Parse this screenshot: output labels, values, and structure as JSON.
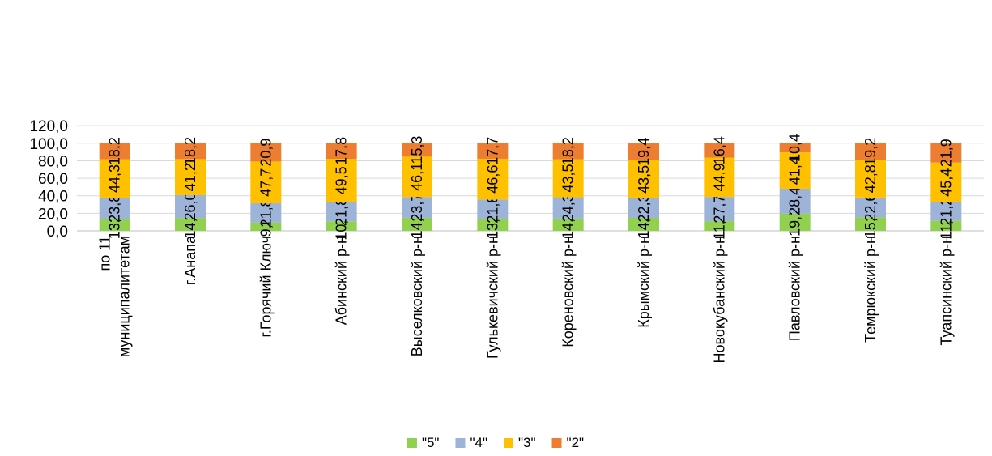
{
  "chart_data": {
    "type": "bar",
    "stacked": true,
    "categories": [
      "по 11 муниципалитетам",
      "г.Анапа",
      "г.Горячий Ключ",
      "Абинский р-н",
      "Выселковский р-н",
      "Гулькевичский р-н",
      "Кореновский р-н",
      "Крымский р-н",
      "Новокубанский р-н",
      "Павловский р-н",
      "Темрюкский р-н",
      "Туапсинский р-н"
    ],
    "category_lines": [
      [
        "по 11",
        "муниципалитетам"
      ],
      [
        "г.Анапа"
      ],
      [
        "г.Горячий Ключ"
      ],
      [
        "Абинский р-н"
      ],
      [
        "Выселковский р-н"
      ],
      [
        "Гулькевичский р-н"
      ],
      [
        "Кореновский р-н"
      ],
      [
        "Крымский р-н"
      ],
      [
        "Новокубанский р-н"
      ],
      [
        "Павловский р-н"
      ],
      [
        "Темрюкский р-н"
      ],
      [
        "Туапсинский р-н"
      ]
    ],
    "series": [
      {
        "name": "\"5\"",
        "color": "#92D050",
        "values": [
          13.7,
          14.7,
          9.6,
          10.9,
          14.9,
          13.9,
          14.0,
          14.8,
          11.0,
          19.7,
          15.4,
          11.4
        ],
        "labels": [
          "13,7",
          "14,7",
          "9,6",
          "10,9",
          "14,9",
          "13,9",
          "14,0",
          "14,8",
          "11,0",
          "19,7",
          "15,4",
          "11,4"
        ]
      },
      {
        "name": "\"4\"",
        "color": "#9DB3D8",
        "values": [
          23.8,
          26.0,
          21.8,
          21.8,
          23.7,
          21.8,
          24.3,
          22.3,
          27.7,
          28.4,
          22.6,
          21.2
        ],
        "labels": [
          "23,8",
          "26,0",
          "21,8",
          "21,8",
          "23,7",
          "21,8",
          "24,3",
          "22,3",
          "27,7",
          "28,4",
          "22,6",
          "21,2"
        ]
      },
      {
        "name": "\"3\"",
        "color": "#FFC000",
        "values": [
          44.3,
          41.2,
          47.7,
          49.5,
          46.1,
          46.6,
          43.5,
          43.5,
          44.9,
          41.4,
          42.8,
          45.4
        ],
        "labels": [
          "44,3",
          "41,2",
          "47,7",
          "49,5",
          "46,1",
          "46,6",
          "43,5",
          "43,5",
          "44,9",
          "41,4",
          "42,8",
          "45,4"
        ]
      },
      {
        "name": "\"2\"",
        "color": "#ED7D31",
        "values": [
          18.2,
          18.2,
          20.9,
          17.8,
          15.3,
          17.7,
          18.2,
          19.4,
          16.4,
          10.4,
          19.2,
          21.9
        ],
        "labels": [
          "18,2",
          "18,2",
          "20,9",
          "17,8",
          "15,3",
          "17,7",
          "18,2",
          "19,4",
          "16,4",
          "10,4",
          "19,2",
          "21,9"
        ]
      }
    ],
    "ylim": [
      0,
      120
    ],
    "yticks": [
      0,
      20,
      40,
      60,
      80,
      100,
      120
    ],
    "ytick_labels": [
      "0,0",
      "20,0",
      "40,0",
      "60,0",
      "80,0",
      "100,0",
      "120,0"
    ],
    "grid": true,
    "legend_position": "bottom",
    "title": "",
    "xlabel": "",
    "ylabel": ""
  }
}
